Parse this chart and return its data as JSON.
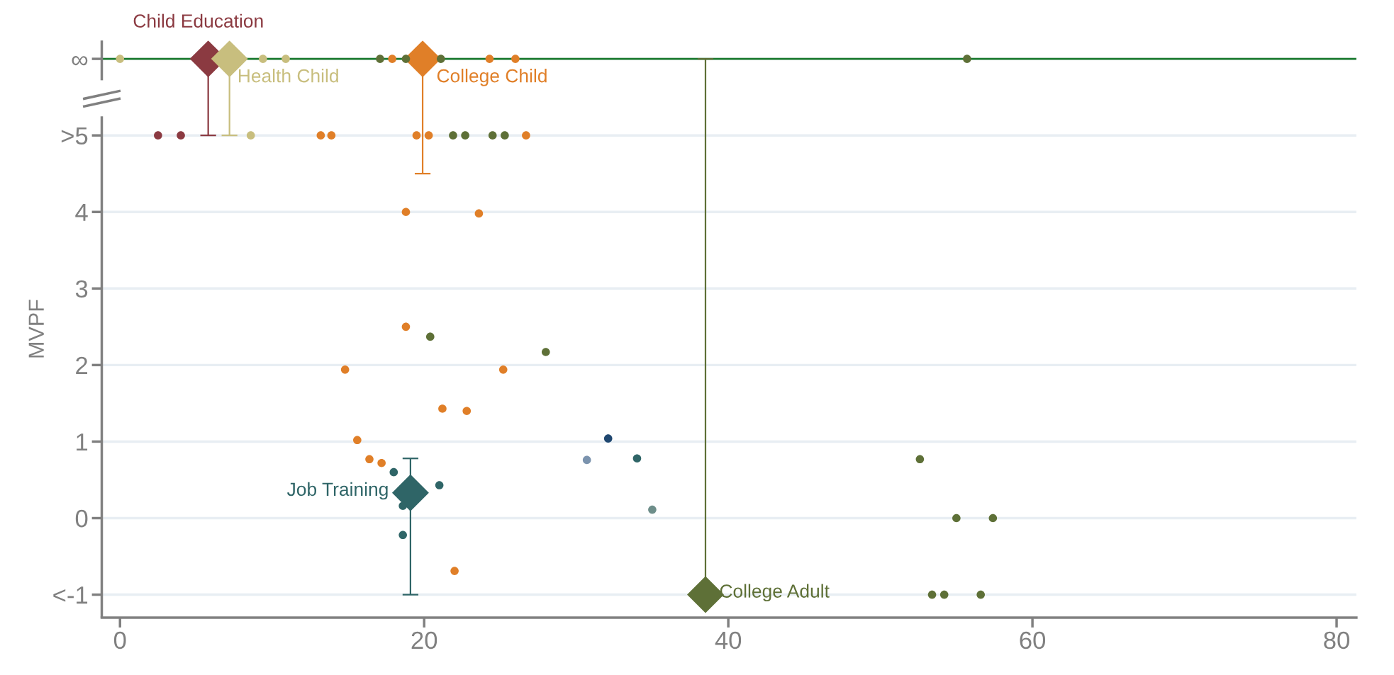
{
  "chart_data": {
    "type": "scatter",
    "ylabel": "MVPF",
    "xlim": [
      -1.2,
      81.3
    ],
    "xticks": [
      0,
      20,
      40,
      60,
      80
    ],
    "ylim": [
      -1.3,
      6.24
    ],
    "yticks": [
      {
        "value": -1,
        "label": "<-1"
      },
      0,
      1,
      2,
      3,
      4,
      {
        "value": 5,
        "label": ">5"
      },
      {
        "value": 6,
        "label": "∞"
      }
    ],
    "grid": "y",
    "marker": "circle",
    "ref_lines": [
      {
        "axis": "y",
        "value": 6,
        "color": "#1b7a2e"
      }
    ],
    "series": [
      {
        "color": "#8b3a41",
        "x": [
          2.5,
          4.0
        ],
        "values": [
          5,
          5
        ]
      },
      {
        "color": "#c8be7e",
        "x": [
          0.0,
          9.4,
          10.9,
          8.6
        ],
        "values": [
          6,
          6,
          6,
          5
        ]
      },
      {
        "color": "#e07f28",
        "x": [
          17.9,
          24.3,
          26.0,
          13.2,
          13.9,
          19.5,
          20.3,
          26.7,
          18.8,
          23.6,
          18.8,
          14.8,
          25.2,
          21.2,
          22.8,
          15.6,
          16.4,
          17.2,
          22.0
        ],
        "values": [
          6,
          6,
          6,
          5,
          5,
          5,
          5,
          5,
          4,
          3.98,
          2.5,
          1.94,
          1.94,
          1.43,
          1.4,
          1.02,
          0.77,
          0.72,
          -0.69
        ]
      },
      {
        "color": "#2f6567",
        "x": [
          18.0,
          21.0,
          18.6,
          18.6,
          34.0
        ],
        "values": [
          0.6,
          0.43,
          0.16,
          -0.22,
          0.78
        ]
      },
      {
        "color": "#5e7037",
        "x": [
          17.1,
          18.8,
          21.1,
          55.7,
          21.9,
          22.7,
          24.5,
          25.3,
          20.4,
          28.0,
          52.6,
          55.0,
          57.4,
          53.4,
          54.2,
          56.6
        ],
        "values": [
          6,
          6,
          6,
          6,
          5,
          5,
          5,
          5,
          2.37,
          2.17,
          0.77,
          0,
          0,
          -1,
          -1,
          -1
        ]
      },
      {
        "color": "#7b93ae",
        "x": [
          30.7
        ],
        "values": [
          0.76
        ]
      },
      {
        "color": "#1f4770",
        "x": [
          32.1
        ],
        "values": [
          1.04
        ]
      },
      {
        "color": "#6e8e8a",
        "x": [
          35.0
        ],
        "values": [
          0.11
        ]
      },
      {
        "name": "Child Education",
        "color": "#8b3a41",
        "marker": "diamond",
        "x": [
          5.8
        ],
        "values": [
          6
        ],
        "errors": [
          [
            5,
            6
          ]
        ]
      },
      {
        "name": "Health Child",
        "color": "#c8be7e",
        "marker": "diamond",
        "x": [
          7.2
        ],
        "values": [
          6
        ],
        "errors": [
          [
            5,
            6
          ]
        ]
      },
      {
        "name": "College Child",
        "color": "#e07f28",
        "marker": "diamond",
        "x": [
          19.9
        ],
        "values": [
          6
        ],
        "errors": [
          [
            4.5,
            6
          ]
        ]
      },
      {
        "name": "Job Training",
        "color": "#2f6567",
        "marker": "diamond",
        "x": [
          19.1
        ],
        "values": [
          0.33
        ],
        "errors": [
          [
            -1,
            0.78
          ]
        ]
      },
      {
        "name": "College Adult",
        "color": "#5e7037",
        "marker": "diamond",
        "x": [
          38.5
        ],
        "values": [
          -1
        ],
        "errors": [
          [
            -1,
            6
          ]
        ]
      }
    ]
  }
}
